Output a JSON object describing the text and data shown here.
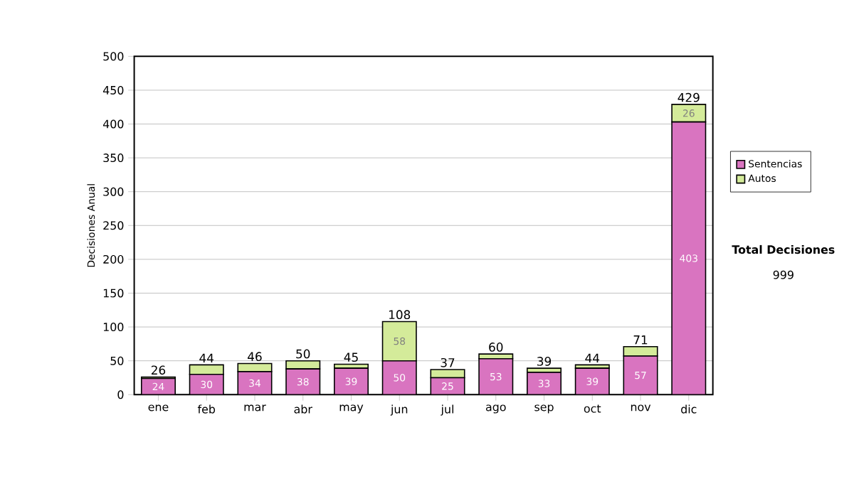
{
  "chart_data": {
    "type": "bar",
    "stacked": true,
    "ylabel": "Decisiones Anual",
    "categories": [
      "ene",
      "feb",
      "mar",
      "abr",
      "may",
      "jun",
      "jul",
      "ago",
      "sep",
      "oct",
      "nov",
      "dic"
    ],
    "series": [
      {
        "name": "Sentencias",
        "color": "#d974c0",
        "values": [
          24,
          30,
          34,
          38,
          39,
          50,
          25,
          53,
          33,
          39,
          57,
          403
        ],
        "value_labels": [
          "24",
          "30",
          "34",
          "38",
          "39",
          "50",
          "25",
          "53",
          "33",
          "39",
          "57",
          "403"
        ]
      },
      {
        "name": "Autos",
        "color": "#d4eb9a",
        "values": [
          2,
          14,
          12,
          12,
          6,
          58,
          12,
          7,
          6,
          5,
          14,
          26
        ],
        "value_labels": [
          null,
          null,
          null,
          null,
          null,
          "58",
          null,
          null,
          null,
          null,
          null,
          "26"
        ]
      }
    ],
    "totals": [
      "26",
      "44",
      "46",
      "50",
      "45",
      "108",
      "37",
      "60",
      "39",
      "44",
      "71",
      "429"
    ],
    "ylim": [
      0,
      500
    ],
    "yticks": [
      0,
      50,
      100,
      150,
      200,
      250,
      300,
      350,
      400,
      450,
      500
    ],
    "grid": "y",
    "legend": "right",
    "annotations": [
      "Total Decisiones",
      "999"
    ]
  }
}
